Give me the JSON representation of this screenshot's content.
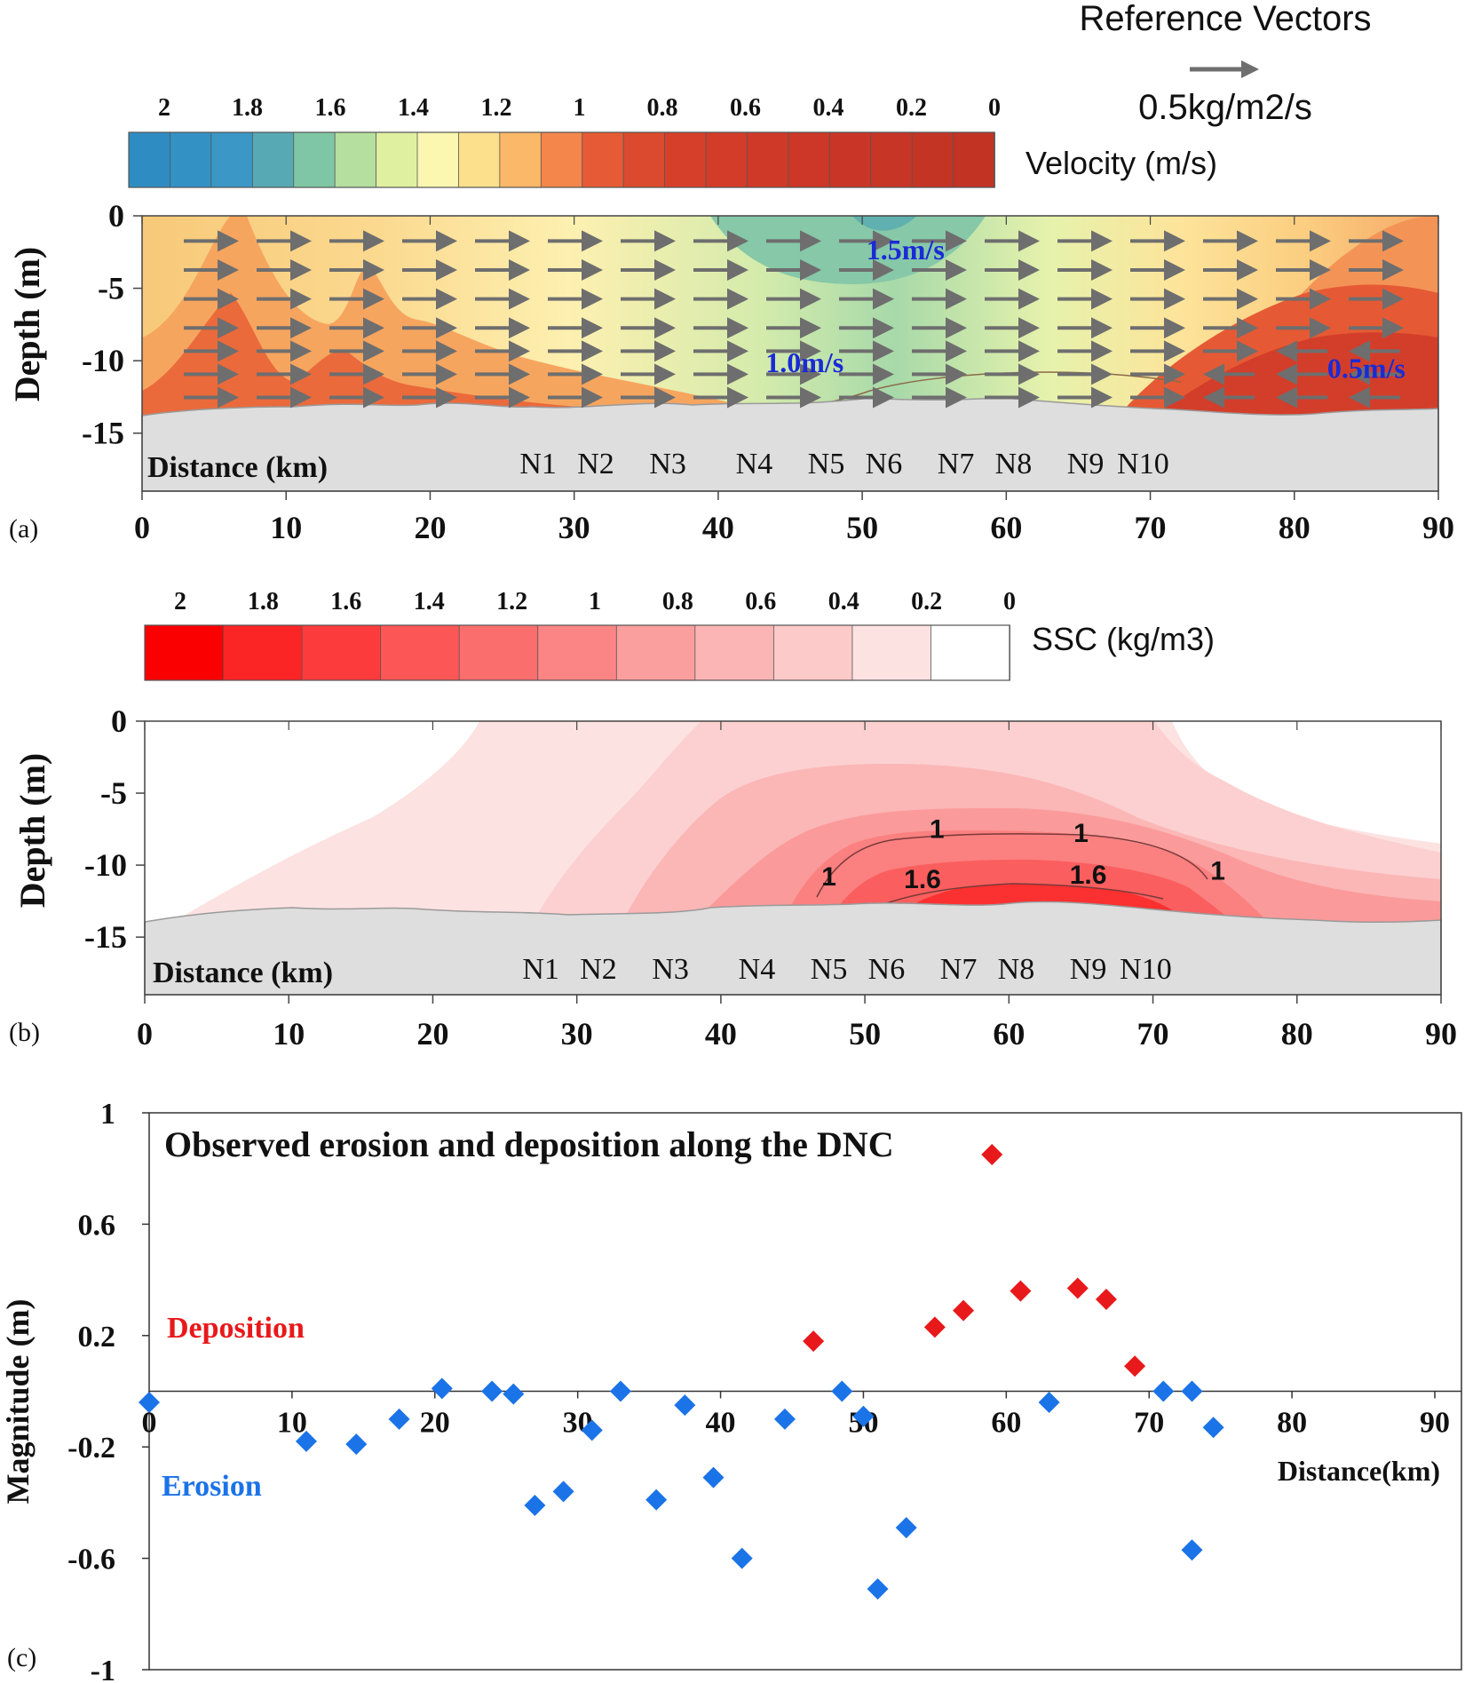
{
  "panel_a": {
    "panel_label": "(a)",
    "reference": {
      "title": "Reference Vectors",
      "value": "0.5kg/m2/s"
    },
    "colorbar": {
      "title": "Velocity (m/s)",
      "ticks": [
        "2",
        "1.8",
        "1.6",
        "1.4",
        "1.2",
        "1",
        "0.8",
        "0.6",
        "0.4",
        "0.2",
        "0"
      ],
      "colors": [
        "#2f8cc2",
        "#3391c4",
        "#3a97c6",
        "#57aab3",
        "#7ec6a5",
        "#b5df9e",
        "#dff0a0",
        "#fbf6b0",
        "#fde08c",
        "#fbb868",
        "#f4854b",
        "#e65b35",
        "#db4a2e",
        "#d63f2a",
        "#d23c29",
        "#cf3a28",
        "#cc3727",
        "#c93627",
        "#c73526",
        "#c43425",
        "#c23324"
      ]
    },
    "annotations": [
      {
        "text": "1.5m/s",
        "x": 53,
        "y": -3
      },
      {
        "text": "1.0m/s",
        "x": 46,
        "y": -10.8
      },
      {
        "text": "0.5m/s",
        "x": 85,
        "y": -11.2
      }
    ]
  },
  "panel_b": {
    "panel_label": "(b)",
    "colorbar": {
      "title": "SSC (kg/m3)",
      "ticks": [
        "2",
        "1.8",
        "1.6",
        "1.4",
        "1.2",
        "1",
        "0.8",
        "0.6",
        "0.4",
        "0.2",
        "0"
      ],
      "colors": [
        "#fb0000",
        "#fc2525",
        "#fc3c3c",
        "#fc5656",
        "#fb6e6e",
        "#fb8585",
        "#fb9e9e",
        "#fcb5b5",
        "#fdcaca",
        "#fde2e2",
        "#ffffff"
      ]
    },
    "contour_labels": [
      {
        "text": "1",
        "x": 55,
        "y": -8.1
      },
      {
        "text": "1",
        "x": 65,
        "y": -8.4
      },
      {
        "text": "1",
        "x": 47.5,
        "y": -11.4
      },
      {
        "text": "1",
        "x": 74.5,
        "y": -11
      },
      {
        "text": "1.6",
        "x": 54,
        "y": -11.6
      },
      {
        "text": "1.6",
        "x": 65.5,
        "y": -11.3
      }
    ]
  },
  "cross_sections": {
    "ylabel": "Depth (m)",
    "xtick_labels": [
      "0",
      "10",
      "20",
      "30",
      "40",
      "50",
      "60",
      "70",
      "80",
      "90"
    ],
    "ytick_labels": [
      "0",
      "-5",
      "-10",
      "-15"
    ],
    "inner_label": "Distance (km)",
    "stations": [
      {
        "name": "N1",
        "x": 27.5
      },
      {
        "name": "N2",
        "x": 31.5
      },
      {
        "name": "N3",
        "x": 36.5
      },
      {
        "name": "N4",
        "x": 42.5
      },
      {
        "name": "N5",
        "x": 47.5
      },
      {
        "name": "N6",
        "x": 51.5
      },
      {
        "name": "N7",
        "x": 56.5
      },
      {
        "name": "N8",
        "x": 60.5
      },
      {
        "name": "N9",
        "x": 65.5
      },
      {
        "name": "N10",
        "x": 69.5
      }
    ]
  },
  "chart_data": {
    "type": "scatter",
    "title": "Observed erosion and deposition along the DNC",
    "panel_label": "(c)",
    "xlabel": "Distance(km)",
    "ylabel": "Magnitude (m)",
    "xlim": [
      0,
      90
    ],
    "ylim": [
      -1,
      1
    ],
    "xtick_labels": [
      "0",
      "10",
      "20",
      "30",
      "40",
      "50",
      "60",
      "70",
      "80",
      "90"
    ],
    "ytick_labels": [
      "1",
      "0.6",
      "0.2",
      "-0.2",
      "-0.6",
      "-1"
    ],
    "series": [
      {
        "name": "Deposition",
        "color": "#e8191b",
        "x": [
          46.5,
          55,
          57,
          59,
          61,
          65,
          67,
          69
        ],
        "y": [
          0.18,
          0.23,
          0.29,
          0.85,
          0.36,
          0.37,
          0.33,
          0.09
        ]
      },
      {
        "name": "Erosion",
        "color": "#1b73e8",
        "x": [
          0,
          11,
          14.5,
          17.5,
          20.5,
          24,
          25.5,
          27,
          29,
          31,
          33,
          35.5,
          37.5,
          39.5,
          41.5,
          44.5,
          48.5,
          50,
          51,
          53,
          63,
          71,
          73,
          74.5,
          73
        ],
        "y": [
          -0.04,
          -0.18,
          -0.19,
          -0.1,
          0.01,
          0,
          -0.01,
          -0.41,
          -0.36,
          -0.14,
          0,
          -0.39,
          -0.05,
          -0.31,
          -0.6,
          -0.1,
          0,
          -0.09,
          -0.71,
          -0.49,
          -0.04,
          0,
          0,
          -0.13,
          -0.57
        ]
      }
    ]
  }
}
